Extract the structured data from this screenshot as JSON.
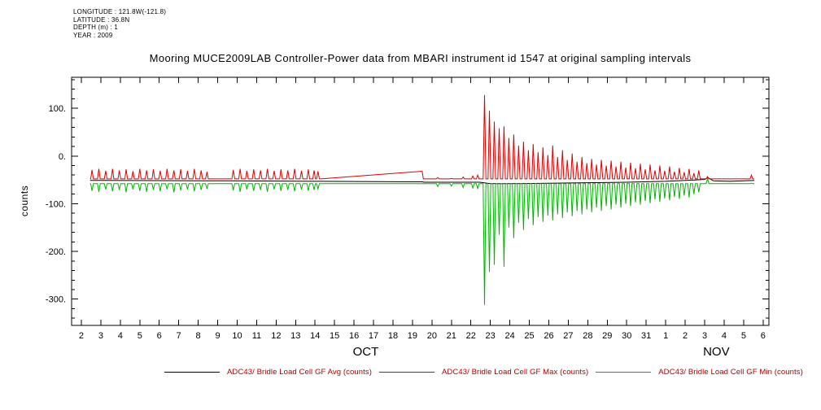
{
  "meta": {
    "longitude": "LONGITUDE : 121.8W(-121.8)",
    "latitude": "LATITUDE : 36.8N",
    "depth": "DEPTH (m) : 1",
    "year": "YEAR : 2009"
  },
  "legend": {
    "text_color": "#aa0000"
  },
  "chart_data": {
    "type": "line",
    "title": "Mooring MUCE2009LAB Controller-Power data from MBARI instrument id 1547 at original sampling intervals",
    "ylabel": "counts",
    "xlim": [
      1.5,
      37.3
    ],
    "ylim": [
      -355,
      165
    ],
    "yticks": [
      {
        "label": "100.",
        "value": 100
      },
      {
        "label": "0.",
        "value": 0
      },
      {
        "label": "-100.",
        "value": -100
      },
      {
        "label": "-200.",
        "value": -200
      },
      {
        "label": "-300.",
        "value": -300
      }
    ],
    "xtick_start_day": 2,
    "xtick_labels": [
      "2",
      "3",
      "4",
      "5",
      "6",
      "7",
      "8",
      "9",
      "10",
      "11",
      "12",
      "13",
      "14",
      "15",
      "16",
      "17",
      "18",
      "19",
      "20",
      "21",
      "22",
      "23",
      "24",
      "25",
      "26",
      "27",
      "28",
      "29",
      "30",
      "31",
      "1",
      "2",
      "3",
      "4",
      "5",
      "6"
    ],
    "month_labels": [
      {
        "label": "OCT",
        "day": 16.6
      },
      {
        "label": "NOV",
        "day": 34.6
      }
    ],
    "series": [
      {
        "name": "ADC43/ Bridle Load Cell GF Avg (counts)",
        "color": "#000000"
      },
      {
        "name": "ADC43/ Bridle Load Cell GF Max (counts)",
        "color": "#dd0000"
      },
      {
        "name": "ADC43/ Bridle Load Cell GF Min (counts)",
        "color": "#00b400"
      }
    ],
    "baseline": {
      "max": -48,
      "min": -58
    },
    "data_start_day": 2.45,
    "data_end_day": 36.55,
    "spike_half_width_days": 0.07,
    "gap_ramp": {
      "start_day": 14.3,
      "end_day": 19.5,
      "max_start": -48,
      "max_end": -32,
      "min_level": -58
    },
    "avg_points": [
      [
        2.45,
        -51
      ],
      [
        8.5,
        -52
      ],
      [
        9.7,
        -52
      ],
      [
        14.3,
        -53
      ],
      [
        19.5,
        -54
      ],
      [
        19.6,
        -55
      ],
      [
        22.45,
        -55
      ],
      [
        23.0,
        -58
      ],
      [
        24.0,
        -58
      ],
      [
        26.0,
        -57
      ],
      [
        28.0,
        -56
      ],
      [
        30.0,
        -55
      ],
      [
        32.0,
        -53
      ],
      [
        33.6,
        -50
      ],
      [
        34.0,
        -49
      ],
      [
        34.15,
        -45
      ],
      [
        34.45,
        -52
      ],
      [
        35.3,
        -53
      ],
      [
        36.55,
        -51
      ]
    ],
    "spike_columns": [
      "day",
      "max",
      "min"
    ],
    "spike_events": [
      [
        2.55,
        -29,
        -73
      ],
      [
        2.9,
        -27,
        -75
      ],
      [
        3.25,
        -31,
        -70
      ],
      [
        3.6,
        -27,
        -74
      ],
      [
        3.95,
        -30,
        -71
      ],
      [
        4.3,
        -28,
        -76
      ],
      [
        4.65,
        -32,
        -70
      ],
      [
        5.0,
        -27,
        -73
      ],
      [
        5.35,
        -30,
        -75
      ],
      [
        5.7,
        -28,
        -71
      ],
      [
        6.05,
        -31,
        -74
      ],
      [
        6.4,
        -27,
        -70
      ],
      [
        6.75,
        -30,
        -76
      ],
      [
        7.1,
        -28,
        -72
      ],
      [
        7.45,
        -31,
        -70
      ],
      [
        7.8,
        -27,
        -74
      ],
      [
        8.15,
        -30,
        -71
      ],
      [
        8.45,
        -33,
        -69
      ],
      [
        9.8,
        -29,
        -72
      ],
      [
        10.15,
        -27,
        -75
      ],
      [
        10.5,
        -31,
        -70
      ],
      [
        10.85,
        -28,
        -73
      ],
      [
        11.2,
        -30,
        -71
      ],
      [
        11.55,
        -27,
        -75
      ],
      [
        11.9,
        -31,
        -70
      ],
      [
        12.25,
        -28,
        -73
      ],
      [
        12.6,
        -30,
        -71
      ],
      [
        12.95,
        -27,
        -74
      ],
      [
        13.3,
        -31,
        -70
      ],
      [
        13.65,
        -28,
        -73
      ],
      [
        13.95,
        -30,
        -71
      ],
      [
        14.15,
        -32,
        -69
      ],
      [
        20.3,
        -45,
        -64
      ],
      [
        21.0,
        -47,
        -63
      ],
      [
        21.6,
        -44,
        -66
      ],
      [
        22.1,
        -42,
        -67
      ],
      [
        22.35,
        -40,
        -68
      ],
      [
        22.7,
        128,
        -312
      ],
      [
        22.95,
        95,
        -243
      ],
      [
        23.2,
        72,
        -228
      ],
      [
        23.45,
        58,
        -165
      ],
      [
        23.7,
        62,
        -232
      ],
      [
        23.95,
        38,
        -150
      ],
      [
        24.2,
        45,
        -172
      ],
      [
        24.45,
        22,
        -140
      ],
      [
        24.7,
        30,
        -155
      ],
      [
        24.95,
        12,
        -132
      ],
      [
        25.2,
        25,
        -145
      ],
      [
        25.45,
        8,
        -128
      ],
      [
        25.7,
        18,
        -138
      ],
      [
        25.95,
        2,
        -125
      ],
      [
        26.2,
        22,
        -135
      ],
      [
        26.45,
        -2,
        -122
      ],
      [
        26.7,
        12,
        -130
      ],
      [
        26.95,
        -8,
        -118
      ],
      [
        27.2,
        5,
        -126
      ],
      [
        27.45,
        -12,
        -115
      ],
      [
        27.7,
        -2,
        -122
      ],
      [
        27.95,
        -15,
        -112
      ],
      [
        28.2,
        -6,
        -118
      ],
      [
        28.45,
        -18,
        -108
      ],
      [
        28.7,
        -8,
        -115
      ],
      [
        28.95,
        -20,
        -105
      ],
      [
        29.2,
        -10,
        -112
      ],
      [
        29.45,
        -22,
        -102
      ],
      [
        29.7,
        -12,
        -108
      ],
      [
        29.95,
        -24,
        -100
      ],
      [
        30.2,
        -14,
        -105
      ],
      [
        30.45,
        -26,
        -97
      ],
      [
        30.7,
        -16,
        -102
      ],
      [
        30.95,
        -28,
        -94
      ],
      [
        31.2,
        -18,
        -99
      ],
      [
        31.45,
        -30,
        -91
      ],
      [
        31.7,
        -20,
        -96
      ],
      [
        31.95,
        -31,
        -89
      ],
      [
        32.2,
        -22,
        -93
      ],
      [
        32.45,
        -33,
        -86
      ],
      [
        32.7,
        -25,
        -90
      ],
      [
        32.95,
        -34,
        -83
      ],
      [
        33.2,
        -27,
        -87
      ],
      [
        33.45,
        -36,
        -80
      ],
      [
        33.7,
        -30,
        -76
      ],
      [
        34.15,
        -43,
        -47
      ],
      [
        36.4,
        -40,
        -57
      ]
    ]
  }
}
